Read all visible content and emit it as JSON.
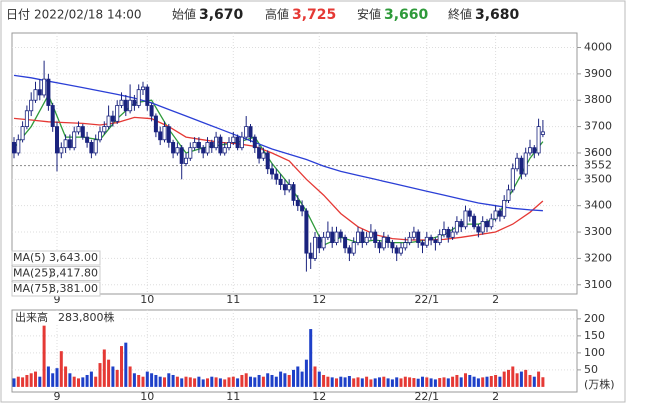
{
  "header": {
    "date_label": "日付",
    "date": "2022/02/18 14:00",
    "open_label": "始値",
    "open": "3,670",
    "high_label": "高値",
    "high": "3,725",
    "low_label": "安値",
    "low": "3,660",
    "close_label": "終値",
    "close": "3,680"
  },
  "chart_data": {
    "type": "candlestick",
    "categories": [
      null,
      null,
      null,
      null,
      null,
      null,
      null,
      null,
      null,
      null,
      "9",
      null,
      null,
      null,
      null,
      null,
      null,
      null,
      null,
      null,
      null,
      null,
      null,
      null,
      null,
      null,
      null,
      null,
      null,
      null,
      null,
      "10",
      null,
      null,
      null,
      null,
      null,
      null,
      null,
      null,
      null,
      null,
      null,
      null,
      null,
      null,
      null,
      null,
      null,
      null,
      null,
      "11",
      null,
      null,
      null,
      null,
      null,
      null,
      null,
      null,
      null,
      null,
      null,
      null,
      null,
      null,
      null,
      null,
      null,
      null,
      null,
      "12",
      null,
      null,
      null,
      null,
      null,
      null,
      null,
      null,
      null,
      null,
      null,
      null,
      null,
      null,
      null,
      null,
      null,
      null,
      null,
      null,
      null,
      null,
      null,
      null,
      "22/1",
      null,
      null,
      null,
      null,
      null,
      null,
      null,
      null,
      null,
      null,
      null,
      null,
      null,
      null,
      null,
      "2",
      null,
      null,
      null,
      null,
      null,
      null,
      null,
      null,
      null,
      null,
      null
    ],
    "ohlc": [
      [
        3640,
        3660,
        3580,
        3600
      ],
      [
        3600,
        3670,
        3590,
        3650
      ],
      [
        3650,
        3720,
        3640,
        3700
      ],
      [
        3700,
        3780,
        3690,
        3760
      ],
      [
        3760,
        3830,
        3740,
        3800
      ],
      [
        3800,
        3870,
        3790,
        3840
      ],
      [
        3840,
        3880,
        3800,
        3820
      ],
      [
        3820,
        3950,
        3810,
        3880
      ],
      [
        3880,
        3900,
        3760,
        3780
      ],
      [
        3780,
        3790,
        3680,
        3700
      ],
      [
        3700,
        3720,
        3530,
        3600
      ],
      [
        3600,
        3640,
        3580,
        3620
      ],
      [
        3620,
        3670,
        3600,
        3650
      ],
      [
        3650,
        3670,
        3610,
        3620
      ],
      [
        3620,
        3700,
        3610,
        3680
      ],
      [
        3680,
        3720,
        3670,
        3700
      ],
      [
        3700,
        3710,
        3650,
        3660
      ],
      [
        3660,
        3680,
        3620,
        3640
      ],
      [
        3640,
        3650,
        3580,
        3600
      ],
      [
        3600,
        3670,
        3590,
        3650
      ],
      [
        3650,
        3700,
        3640,
        3680
      ],
      [
        3680,
        3720,
        3670,
        3700
      ],
      [
        3700,
        3780,
        3690,
        3740
      ],
      [
        3740,
        3760,
        3700,
        3720
      ],
      [
        3720,
        3800,
        3710,
        3780
      ],
      [
        3780,
        3830,
        3770,
        3800
      ],
      [
        3800,
        3820,
        3740,
        3760
      ],
      [
        3760,
        3860,
        3750,
        3800
      ],
      [
        3800,
        3820,
        3760,
        3780
      ],
      [
        3780,
        3860,
        3770,
        3840
      ],
      [
        3840,
        3870,
        3820,
        3850
      ],
      [
        3850,
        3860,
        3760,
        3780
      ],
      [
        3780,
        3790,
        3720,
        3740
      ],
      [
        3740,
        3750,
        3660,
        3680
      ],
      [
        3680,
        3700,
        3630,
        3650
      ],
      [
        3650,
        3720,
        3640,
        3700
      ],
      [
        3700,
        3710,
        3620,
        3640
      ],
      [
        3640,
        3650,
        3580,
        3600
      ],
      [
        3600,
        3640,
        3590,
        3620
      ],
      [
        3620,
        3630,
        3500,
        3560
      ],
      [
        3560,
        3600,
        3550,
        3580
      ],
      [
        3580,
        3640,
        3570,
        3620
      ],
      [
        3620,
        3660,
        3610,
        3640
      ],
      [
        3640,
        3660,
        3600,
        3620
      ],
      [
        3620,
        3630,
        3580,
        3600
      ],
      [
        3600,
        3660,
        3590,
        3640
      ],
      [
        3640,
        3650,
        3600,
        3620
      ],
      [
        3620,
        3680,
        3610,
        3660
      ],
      [
        3660,
        3670,
        3590,
        3600
      ],
      [
        3600,
        3640,
        3590,
        3620
      ],
      [
        3620,
        3660,
        3610,
        3640
      ],
      [
        3640,
        3680,
        3630,
        3660
      ],
      [
        3660,
        3670,
        3610,
        3620
      ],
      [
        3620,
        3680,
        3610,
        3660
      ],
      [
        3660,
        3740,
        3650,
        3700
      ],
      [
        3700,
        3710,
        3640,
        3660
      ],
      [
        3660,
        3670,
        3600,
        3620
      ],
      [
        3620,
        3630,
        3560,
        3580
      ],
      [
        3580,
        3620,
        3570,
        3600
      ],
      [
        3600,
        3610,
        3520,
        3540
      ],
      [
        3540,
        3560,
        3500,
        3520
      ],
      [
        3520,
        3540,
        3480,
        3500
      ],
      [
        3500,
        3520,
        3460,
        3480
      ],
      [
        3480,
        3500,
        3440,
        3460
      ],
      [
        3460,
        3500,
        3450,
        3480
      ],
      [
        3480,
        3490,
        3400,
        3420
      ],
      [
        3420,
        3440,
        3380,
        3400
      ],
      [
        3400,
        3420,
        3360,
        3380
      ],
      [
        3380,
        3390,
        3150,
        3220
      ],
      [
        3220,
        3260,
        3160,
        3200
      ],
      [
        3200,
        3300,
        3190,
        3280
      ],
      [
        3280,
        3290,
        3220,
        3240
      ],
      [
        3240,
        3300,
        3230,
        3280
      ],
      [
        3280,
        3340,
        3270,
        3300
      ],
      [
        3300,
        3320,
        3240,
        3260
      ],
      [
        3260,
        3320,
        3250,
        3300
      ],
      [
        3300,
        3310,
        3260,
        3280
      ],
      [
        3280,
        3290,
        3220,
        3240
      ],
      [
        3240,
        3250,
        3190,
        3220
      ],
      [
        3220,
        3280,
        3210,
        3260
      ],
      [
        3260,
        3320,
        3250,
        3300
      ],
      [
        3300,
        3310,
        3240,
        3260
      ],
      [
        3260,
        3300,
        3250,
        3280
      ],
      [
        3280,
        3330,
        3270,
        3300
      ],
      [
        3300,
        3310,
        3240,
        3260
      ],
      [
        3260,
        3270,
        3220,
        3240
      ],
      [
        3240,
        3300,
        3230,
        3280
      ],
      [
        3280,
        3290,
        3240,
        3260
      ],
      [
        3260,
        3270,
        3220,
        3240
      ],
      [
        3240,
        3250,
        3190,
        3220
      ],
      [
        3220,
        3260,
        3210,
        3240
      ],
      [
        3240,
        3280,
        3230,
        3260
      ],
      [
        3260,
        3300,
        3250,
        3280
      ],
      [
        3280,
        3320,
        3270,
        3300
      ],
      [
        3300,
        3310,
        3240,
        3260
      ],
      [
        3260,
        3270,
        3220,
        3250
      ],
      [
        3250,
        3300,
        3240,
        3280
      ],
      [
        3280,
        3290,
        3250,
        3270
      ],
      [
        3270,
        3280,
        3230,
        3260
      ],
      [
        3260,
        3310,
        3250,
        3290
      ],
      [
        3290,
        3340,
        3280,
        3310
      ],
      [
        3310,
        3320,
        3260,
        3280
      ],
      [
        3280,
        3320,
        3270,
        3300
      ],
      [
        3300,
        3360,
        3290,
        3340
      ],
      [
        3340,
        3350,
        3300,
        3320
      ],
      [
        3320,
        3400,
        3310,
        3380
      ],
      [
        3380,
        3390,
        3340,
        3360
      ],
      [
        3360,
        3370,
        3310,
        3320
      ],
      [
        3320,
        3330,
        3280,
        3300
      ],
      [
        3300,
        3360,
        3290,
        3340
      ],
      [
        3340,
        3350,
        3300,
        3320
      ],
      [
        3320,
        3370,
        3310,
        3350
      ],
      [
        3350,
        3400,
        3340,
        3380
      ],
      [
        3380,
        3390,
        3340,
        3360
      ],
      [
        3360,
        3440,
        3350,
        3420
      ],
      [
        3420,
        3480,
        3410,
        3460
      ],
      [
        3460,
        3560,
        3450,
        3540
      ],
      [
        3540,
        3600,
        3530,
        3580
      ],
      [
        3580,
        3590,
        3500,
        3520
      ],
      [
        3520,
        3620,
        3510,
        3600
      ],
      [
        3600,
        3650,
        3590,
        3620
      ],
      [
        3620,
        3630,
        3580,
        3600
      ],
      [
        3600,
        3730,
        3590,
        3700
      ],
      [
        3670,
        3725,
        3660,
        3680
      ]
    ],
    "up_color": "#ffffff",
    "down_color": "#1a237e",
    "edge_color": "#1a237e",
    "ylim": [
      3065,
      4055
    ],
    "yticks": [
      3100,
      3200,
      3300,
      3400,
      3500,
      3600,
      3700,
      3800,
      3900,
      4000
    ],
    "grid": true,
    "ref_line": {
      "value": 3552,
      "color": "#e53935"
    },
    "ma": [
      {
        "name": "MA(5)",
        "color": "#2e9a3a",
        "last": 3643,
        "last_label": "3,643.00",
        "x": [
          0,
          4,
          8,
          12,
          16,
          20,
          24,
          28,
          32,
          36,
          40,
          44,
          48,
          52,
          56,
          60,
          64,
          68,
          72,
          76,
          80,
          84,
          88,
          92,
          96,
          100,
          104,
          108,
          112,
          116,
          120,
          123
        ],
        "values": [
          3620,
          3700,
          3820,
          3660,
          3660,
          3650,
          3730,
          3790,
          3800,
          3690,
          3600,
          3620,
          3630,
          3640,
          3660,
          3560,
          3480,
          3380,
          3250,
          3280,
          3260,
          3270,
          3260,
          3260,
          3270,
          3290,
          3330,
          3330,
          3350,
          3460,
          3580,
          3643
        ]
      },
      {
        "name": "MA(25)",
        "color": "#e53935",
        "last": 3417.8,
        "last_label": "3,417.80",
        "x": [
          0,
          4,
          8,
          12,
          16,
          20,
          24,
          28,
          32,
          36,
          40,
          44,
          48,
          52,
          56,
          60,
          64,
          68,
          72,
          76,
          80,
          84,
          88,
          92,
          96,
          100,
          104,
          108,
          112,
          116,
          120,
          123
        ],
        "values": [
          3731,
          3725,
          3718,
          3715,
          3712,
          3706,
          3715,
          3735,
          3730,
          3700,
          3660,
          3650,
          3640,
          3635,
          3625,
          3600,
          3570,
          3500,
          3440,
          3370,
          3320,
          3290,
          3275,
          3270,
          3270,
          3272,
          3280,
          3290,
          3300,
          3330,
          3375,
          3417.8
        ]
      },
      {
        "name": "MA(75)",
        "color": "#2b3fd6",
        "last": 3381,
        "last_label": "3,381.00",
        "x": [
          0,
          4,
          8,
          12,
          16,
          20,
          24,
          28,
          32,
          36,
          40,
          44,
          48,
          52,
          56,
          60,
          64,
          68,
          72,
          76,
          80,
          84,
          88,
          92,
          96,
          100,
          104,
          108,
          112,
          116,
          120,
          123
        ],
        "values": [
          3894,
          3885,
          3872,
          3860,
          3848,
          3835,
          3822,
          3808,
          3790,
          3765,
          3740,
          3715,
          3690,
          3665,
          3640,
          3615,
          3595,
          3575,
          3550,
          3530,
          3515,
          3500,
          3485,
          3470,
          3455,
          3440,
          3425,
          3410,
          3400,
          3390,
          3384,
          3381
        ]
      }
    ],
    "volume": {
      "title": "出来高",
      "last": 28.38,
      "last_label": "283,800株",
      "unit": "(万株)",
      "up_color": "#e53935",
      "down_color": "#1e40c8",
      "ylim": [
        -15,
        226
      ],
      "yticks": [
        50,
        100,
        150,
        200
      ],
      "values": [
        25,
        30,
        28,
        35,
        40,
        45,
        30,
        180,
        60,
        40,
        55,
        105,
        60,
        40,
        30,
        25,
        28,
        35,
        45,
        30,
        70,
        110,
        80,
        60,
        50,
        120,
        130,
        60,
        40,
        35,
        30,
        45,
        40,
        35,
        30,
        28,
        40,
        35,
        30,
        25,
        30,
        28,
        25,
        30,
        22,
        25,
        30,
        28,
        25,
        22,
        28,
        30,
        25,
        35,
        40,
        30,
        28,
        35,
        30,
        40,
        35,
        30,
        45,
        40,
        35,
        50,
        60,
        45,
        80,
        170,
        60,
        45,
        35,
        30,
        28,
        25,
        30,
        28,
        32,
        25,
        28,
        25,
        30,
        22,
        25,
        28,
        30,
        25,
        22,
        28,
        25,
        30,
        28,
        26,
        24,
        30,
        28,
        25,
        22,
        26,
        28,
        25,
        30,
        35,
        28,
        40,
        35,
        30,
        25,
        28,
        30,
        32,
        35,
        30,
        45,
        50,
        60,
        40,
        45,
        50,
        35,
        30,
        45,
        28.38
      ]
    }
  }
}
